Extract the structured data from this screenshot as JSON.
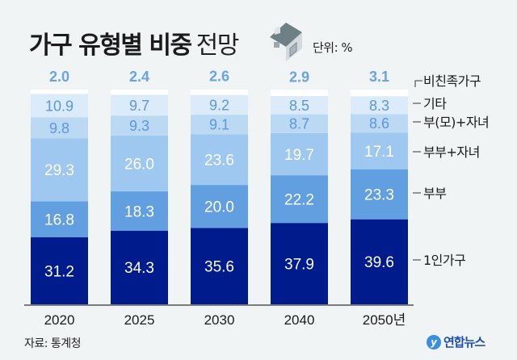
{
  "header": {
    "title_bold": "가구 유형별 비중",
    "title_light": "전망",
    "unit": "단위: %"
  },
  "footer": {
    "source": "자료: 통계청",
    "logo_text": "연합뉴스"
  },
  "colors": {
    "비친족가구": "#ffffff",
    "기타": "#dbebfa",
    "부(모)+자녀": "#bcd9f4",
    "부부+자녀": "#9ec8f0",
    "부부": "#629fe0",
    "1인가구": "#001b8c",
    "top_label": "#6aa3e4",
    "light_label": "#5b97df",
    "dark_label": "#ffffff",
    "baseline": "#555555"
  },
  "chart_data": {
    "type": "bar",
    "stacked": true,
    "title": "가구 유형별 비중 전망",
    "unit": "%",
    "categories": [
      "2020",
      "2025",
      "2030",
      "2040",
      "2050년"
    ],
    "series": [
      {
        "name": "1인가구",
        "values": [
          31.2,
          34.3,
          35.6,
          37.9,
          39.6
        ]
      },
      {
        "name": "부부",
        "values": [
          16.8,
          18.3,
          20.0,
          22.2,
          23.3
        ]
      },
      {
        "name": "부부+자녀",
        "values": [
          29.3,
          26.0,
          23.6,
          19.7,
          17.1
        ]
      },
      {
        "name": "부(모)+자녀",
        "values": [
          9.8,
          9.3,
          9.1,
          8.7,
          8.6
        ]
      },
      {
        "name": "기타",
        "values": [
          10.9,
          9.7,
          9.2,
          8.5,
          8.3
        ]
      },
      {
        "name": "비친족가구",
        "values": [
          2.0,
          2.4,
          2.6,
          2.9,
          3.1
        ]
      }
    ],
    "ylim": [
      0,
      100
    ],
    "legend_position": "right",
    "source": "자료: 통계청"
  }
}
